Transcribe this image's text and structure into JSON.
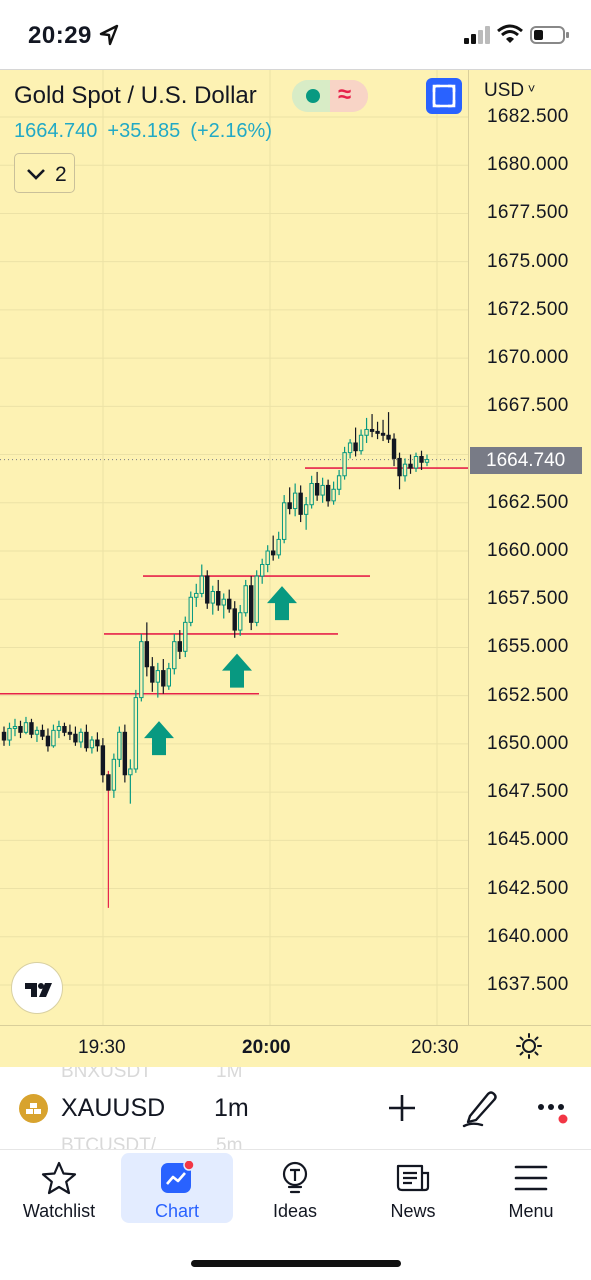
{
  "status_bar": {
    "time": "20:29"
  },
  "header": {
    "symbol_title": "Gold Spot / U.S. Dollar",
    "price": "1664.740",
    "change": "+35.185",
    "change_pct": "(+2.16%)",
    "collapse_count": "2",
    "market_status_color": "#089981",
    "delay_icon_color": "#e6224a"
  },
  "price_axis": {
    "currency": "USD",
    "last_price": "1664.740",
    "labels": [
      "1682.500",
      "1680.000",
      "1677.500",
      "1675.000",
      "1672.500",
      "1670.000",
      "1667.500",
      "1662.500",
      "1660.000",
      "1657.500",
      "1655.000",
      "1652.500",
      "1650.000",
      "1647.500",
      "1645.000",
      "1642.500",
      "1640.000",
      "1637.500"
    ]
  },
  "time_axis": {
    "labels": [
      "19:30",
      "20:00",
      "20:30"
    ]
  },
  "chart_data": {
    "type": "candlestick",
    "symbol": "XAUUSD",
    "interval": "1m",
    "ylim": [
      1636.5,
      1683.5
    ],
    "y_ticks": [
      1637.5,
      1640.0,
      1642.5,
      1645.0,
      1647.5,
      1650.0,
      1652.5,
      1655.0,
      1657.5,
      1660.0,
      1662.5,
      1665.0,
      1667.5,
      1670.0,
      1672.5,
      1675.0,
      1677.5,
      1680.0,
      1682.5
    ],
    "last_price": 1664.74,
    "up_color": "#089981",
    "down_color": "#131722",
    "candles": [
      [
        1650.6,
        1650.9,
        1649.9,
        1650.2
      ],
      [
        1650.2,
        1651.1,
        1649.9,
        1650.8
      ],
      [
        1650.8,
        1651.3,
        1650.4,
        1650.9
      ],
      [
        1650.9,
        1651.2,
        1650.3,
        1650.6
      ],
      [
        1650.6,
        1651.4,
        1650.5,
        1651.1
      ],
      [
        1651.1,
        1651.3,
        1650.3,
        1650.5
      ],
      [
        1650.5,
        1650.9,
        1650.1,
        1650.7
      ],
      [
        1650.7,
        1651.0,
        1650.2,
        1650.4
      ],
      [
        1650.4,
        1650.8,
        1649.6,
        1649.9
      ],
      [
        1649.9,
        1651.0,
        1649.8,
        1650.7
      ],
      [
        1650.7,
        1651.2,
        1650.3,
        1650.9
      ],
      [
        1650.9,
        1651.1,
        1650.4,
        1650.6
      ],
      [
        1650.6,
        1651.0,
        1650.2,
        1650.5
      ],
      [
        1650.5,
        1650.9,
        1649.9,
        1650.1
      ],
      [
        1650.1,
        1650.8,
        1649.8,
        1650.6
      ],
      [
        1650.6,
        1651.0,
        1649.6,
        1649.8
      ],
      [
        1649.8,
        1650.4,
        1649.5,
        1650.2
      ],
      [
        1650.2,
        1650.6,
        1649.6,
        1649.9
      ],
      [
        1649.9,
        1650.3,
        1648.0,
        1648.4
      ],
      [
        1648.4,
        1648.6,
        1641.5,
        1647.6
      ],
      [
        1647.6,
        1649.5,
        1647.2,
        1649.2
      ],
      [
        1649.2,
        1650.9,
        1648.8,
        1650.6
      ],
      [
        1650.6,
        1651.0,
        1648.0,
        1648.4
      ],
      [
        1648.4,
        1649.2,
        1646.9,
        1648.7
      ],
      [
        1648.7,
        1652.8,
        1648.5,
        1652.4
      ],
      [
        1652.4,
        1655.7,
        1652.2,
        1655.3
      ],
      [
        1655.3,
        1656.3,
        1653.5,
        1654.0
      ],
      [
        1654.0,
        1654.5,
        1652.7,
        1653.2
      ],
      [
        1653.2,
        1654.2,
        1652.4,
        1653.8
      ],
      [
        1653.8,
        1654.4,
        1652.6,
        1653.0
      ],
      [
        1653.0,
        1654.2,
        1652.8,
        1653.9
      ],
      [
        1653.9,
        1655.7,
        1653.6,
        1655.3
      ],
      [
        1655.3,
        1655.9,
        1654.4,
        1654.8
      ],
      [
        1654.8,
        1656.6,
        1654.5,
        1656.3
      ],
      [
        1656.3,
        1657.9,
        1656.1,
        1657.6
      ],
      [
        1657.6,
        1658.3,
        1657.1,
        1657.8
      ],
      [
        1657.8,
        1659.3,
        1657.6,
        1658.7
      ],
      [
        1658.7,
        1659.0,
        1657.0,
        1657.3
      ],
      [
        1657.3,
        1658.2,
        1656.7,
        1657.9
      ],
      [
        1657.9,
        1658.5,
        1656.9,
        1657.2
      ],
      [
        1657.2,
        1657.8,
        1656.5,
        1657.5
      ],
      [
        1657.5,
        1658.0,
        1656.8,
        1657.0
      ],
      [
        1657.0,
        1657.4,
        1655.5,
        1655.9
      ],
      [
        1655.9,
        1657.2,
        1655.6,
        1656.8
      ],
      [
        1656.8,
        1658.5,
        1656.6,
        1658.2
      ],
      [
        1658.2,
        1658.7,
        1655.9,
        1656.3
      ],
      [
        1656.3,
        1659.0,
        1656.1,
        1658.7
      ],
      [
        1658.7,
        1659.6,
        1658.3,
        1659.3
      ],
      [
        1659.3,
        1660.3,
        1658.9,
        1660.0
      ],
      [
        1660.0,
        1660.8,
        1659.5,
        1659.8
      ],
      [
        1659.8,
        1661.0,
        1659.6,
        1660.6
      ],
      [
        1660.6,
        1662.9,
        1660.4,
        1662.5
      ],
      [
        1662.5,
        1663.3,
        1661.9,
        1662.2
      ],
      [
        1662.2,
        1663.5,
        1661.8,
        1663.0
      ],
      [
        1663.0,
        1663.4,
        1661.5,
        1661.9
      ],
      [
        1661.9,
        1662.8,
        1661.1,
        1662.4
      ],
      [
        1662.4,
        1663.9,
        1662.2,
        1663.5
      ],
      [
        1663.5,
        1664.1,
        1662.6,
        1662.9
      ],
      [
        1662.9,
        1663.8,
        1662.5,
        1663.4
      ],
      [
        1663.4,
        1663.7,
        1662.3,
        1662.6
      ],
      [
        1662.6,
        1663.6,
        1662.4,
        1663.2
      ],
      [
        1663.2,
        1664.2,
        1662.9,
        1663.9
      ],
      [
        1663.9,
        1665.4,
        1663.7,
        1665.1
      ],
      [
        1665.1,
        1665.8,
        1664.8,
        1665.6
      ],
      [
        1665.6,
        1666.4,
        1664.9,
        1665.2
      ],
      [
        1665.2,
        1666.3,
        1665.0,
        1666.0
      ],
      [
        1666.0,
        1666.9,
        1665.6,
        1666.3
      ],
      [
        1666.3,
        1667.1,
        1665.9,
        1666.2
      ],
      [
        1666.2,
        1666.7,
        1665.8,
        1666.1
      ],
      [
        1666.1,
        1666.8,
        1665.7,
        1666.0
      ],
      [
        1666.0,
        1667.2,
        1665.6,
        1665.8
      ],
      [
        1665.8,
        1666.1,
        1664.4,
        1664.8
      ],
      [
        1664.8,
        1665.1,
        1663.2,
        1663.9
      ],
      [
        1663.9,
        1664.8,
        1663.6,
        1664.5
      ],
      [
        1664.5,
        1665.0,
        1664.0,
        1664.3
      ],
      [
        1664.3,
        1665.1,
        1664.1,
        1664.9
      ],
      [
        1664.9,
        1665.2,
        1664.2,
        1664.6
      ],
      [
        1664.6,
        1665.0,
        1664.4,
        1664.74
      ]
    ],
    "drawings": {
      "horizontal_lines": [
        {
          "price": 1652.6,
          "color": "#e6224a"
        },
        {
          "price": 1655.7,
          "color": "#e6224a"
        },
        {
          "price": 1658.7,
          "color": "#e6224a"
        },
        {
          "price": 1664.3,
          "color": "#e6224a"
        }
      ],
      "arrow_up_markers": [
        {
          "price": 1650.3,
          "color": "#089981"
        },
        {
          "price": 1653.8,
          "color": "#089981"
        },
        {
          "price": 1657.3,
          "color": "#089981"
        }
      ]
    }
  },
  "symbol_bar": {
    "ghost_top_symbol": "BNXUSDT",
    "ghost_top_interval": "1M",
    "symbol": "XAUUSD",
    "interval": "1m",
    "ghost_bottom_symbol": "BTCUSDT/",
    "ghost_bottom_interval": "5m"
  },
  "tabs": [
    {
      "label": "Watchlist",
      "icon": "star-icon"
    },
    {
      "label": "Chart",
      "icon": "chart-icon"
    },
    {
      "label": "Ideas",
      "icon": "lightbulb-icon"
    },
    {
      "label": "News",
      "icon": "news-icon"
    },
    {
      "label": "Menu",
      "icon": "hamburger-icon"
    }
  ],
  "active_tab": "Chart",
  "accent_color": "#2962ff"
}
